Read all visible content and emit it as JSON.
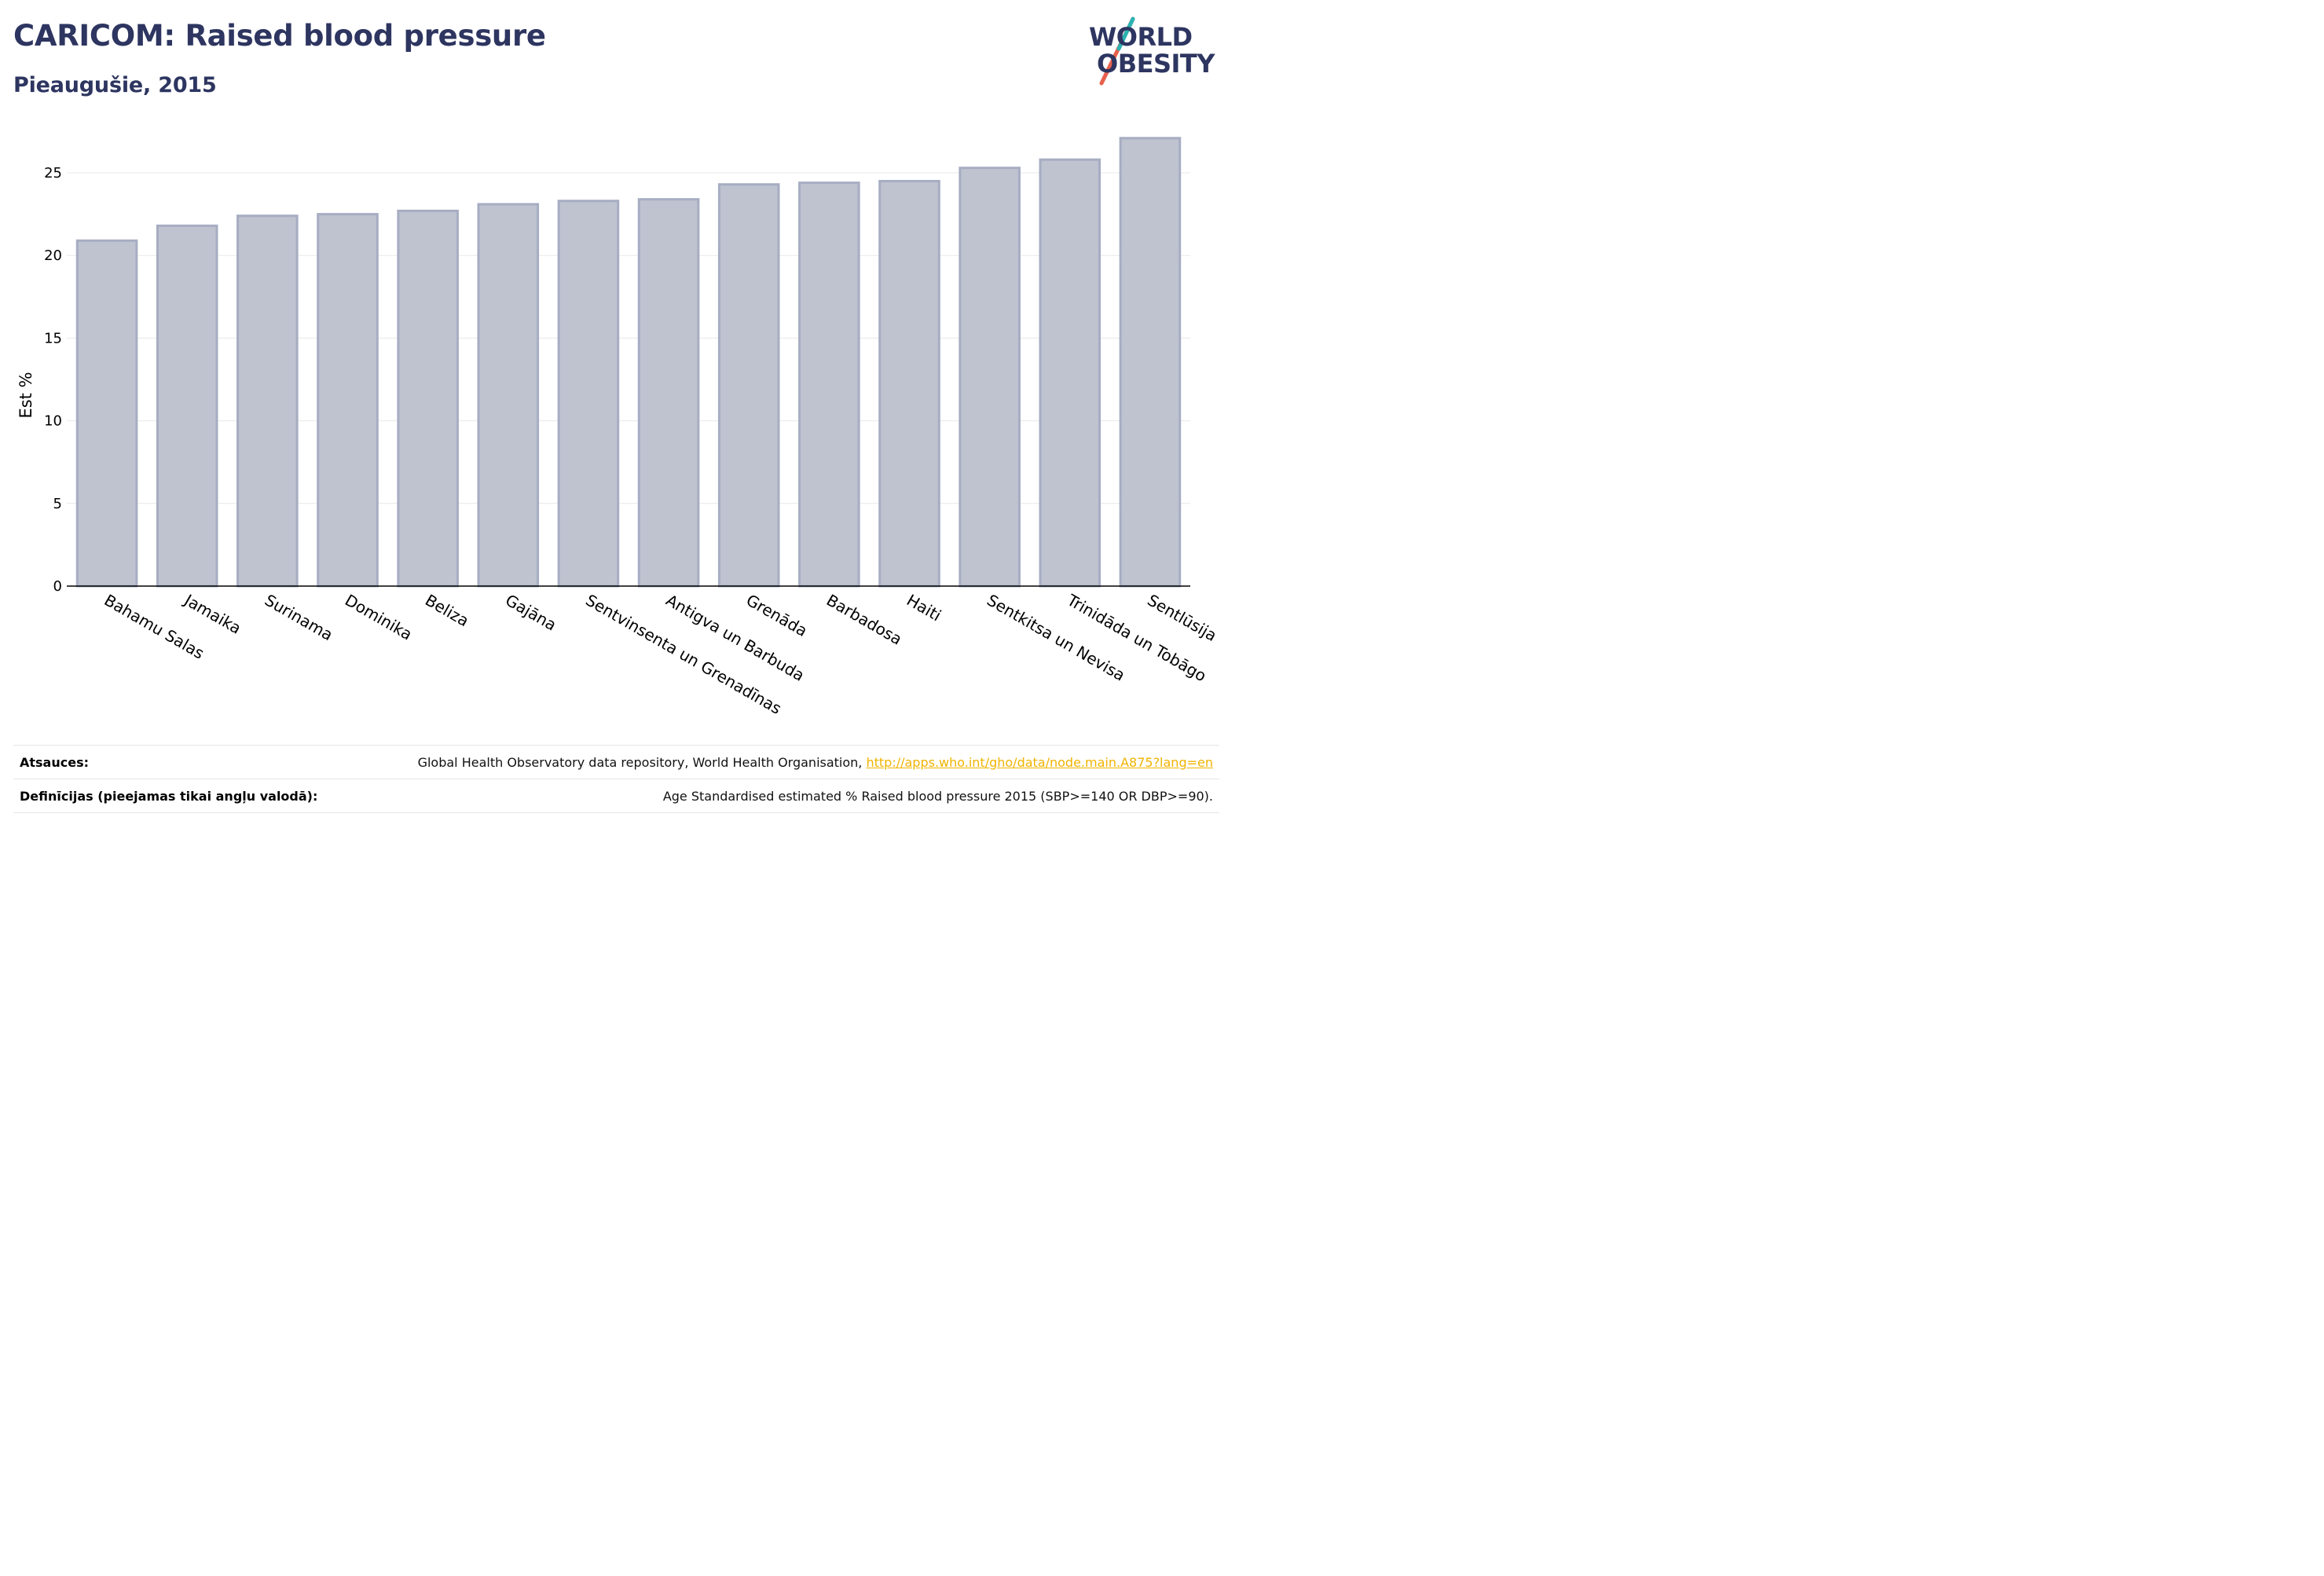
{
  "header": {
    "title": "CARICOM: Raised blood pressure",
    "subtitle": "Pieaugušie, 2015"
  },
  "logo": {
    "line1": "WORLD",
    "line2": "OBESITY",
    "colors": {
      "text": "#2d3560",
      "accent_teal": "#2ab3b1",
      "accent_red": "#e8604c"
    }
  },
  "colors": {
    "bar_fill": "#bfc3d0",
    "bar_stroke": "#a7adc2",
    "grid": "#e8e8e8",
    "axis": "#000000",
    "title": "#2d3560",
    "link": "#f0b400"
  },
  "chart_data": {
    "type": "bar",
    "title": "CARICOM: Raised blood pressure",
    "subtitle": "Pieaugušie, 2015",
    "ylabel": "Est %",
    "xlabel": "",
    "ylim": [
      0,
      28
    ],
    "yticks": [
      0,
      5,
      10,
      15,
      20,
      25
    ],
    "grid": true,
    "categories": [
      "Bahamu Salas",
      "Jamaika",
      "Surinama",
      "Dominika",
      "Beliza",
      "Gajāna",
      "Sentvinsenta un Grenadīnas",
      "Antigva un Barbuda",
      "Grenāda",
      "Barbadosa",
      "Haiti",
      "Sentkitsa un Nevisa",
      "Trinidāda un Tobāgo",
      "Sentlūsija"
    ],
    "values": [
      20.9,
      21.8,
      22.4,
      22.5,
      22.7,
      23.1,
      23.3,
      23.4,
      24.3,
      24.4,
      24.5,
      25.3,
      25.8,
      27.1
    ]
  },
  "footer": {
    "sources_label": "Atsauces:",
    "sources_text": "Global Health Observatory data repository, World Health Organisation, ",
    "sources_link": "http://apps.who.int/gho/data/node.main.A875?lang=en",
    "definitions_label": "Definīcijas (pieejamas tikai angļu valodā):",
    "definitions_text": "Age Standardised estimated % Raised blood pressure 2015 (SBP>=140 OR DBP>=90)."
  }
}
